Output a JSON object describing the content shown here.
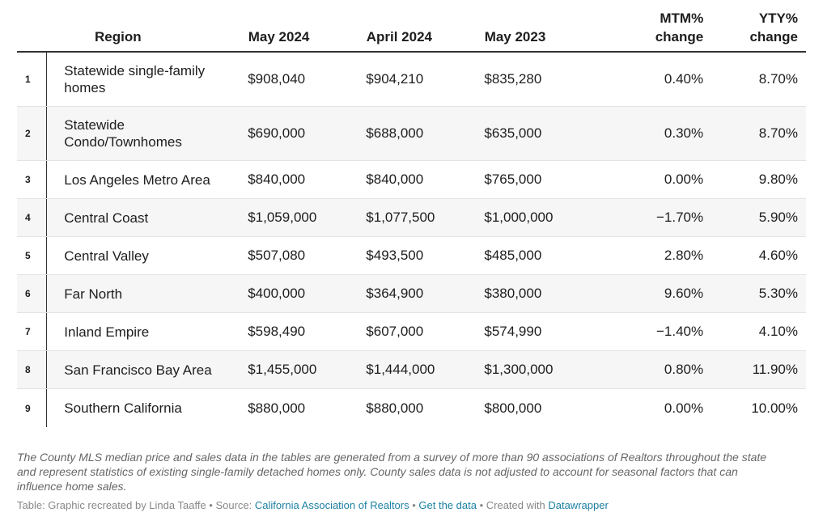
{
  "table": {
    "headers": {
      "rank": "",
      "region": "Region",
      "may_2024": "May 2024",
      "april_2024": "April 2024",
      "may_2023": "May 2023",
      "mtm_line1": "MTM%",
      "mtm_line2": "change",
      "yty_line1": "YTY%",
      "yty_line2": "change"
    },
    "rows": [
      {
        "rank": "1",
        "region_line1": "Statewide single-family",
        "region_line2": "homes",
        "may_2024": "$908,040",
        "april_2024": "$904,210",
        "may_2023": "$835,280",
        "mtm": "0.40%",
        "yty": "8.70%"
      },
      {
        "rank": "2",
        "region_line1": "Statewide",
        "region_line2": "Condo/Townhomes",
        "may_2024": "$690,000",
        "april_2024": "$688,000",
        "may_2023": "$635,000",
        "mtm": "0.30%",
        "yty": "8.70%"
      },
      {
        "rank": "3",
        "region": "Los Angeles Metro Area",
        "may_2024": "$840,000",
        "april_2024": "$840,000",
        "may_2023": "$765,000",
        "mtm": "0.00%",
        "yty": "9.80%"
      },
      {
        "rank": "4",
        "region": "Central Coast",
        "may_2024": "$1,059,000",
        "april_2024": "$1,077,500",
        "may_2023": "$1,000,000",
        "mtm": "−1.70%",
        "yty": "5.90%"
      },
      {
        "rank": "5",
        "region": "Central Valley",
        "may_2024": "$507,080",
        "april_2024": "$493,500",
        "may_2023": "$485,000",
        "mtm": "2.80%",
        "yty": "4.60%"
      },
      {
        "rank": "6",
        "region": "Far North",
        "may_2024": "$400,000",
        "april_2024": "$364,900",
        "may_2023": "$380,000",
        "mtm": "9.60%",
        "yty": "5.30%"
      },
      {
        "rank": "7",
        "region": "Inland Empire",
        "may_2024": "$598,490",
        "april_2024": "$607,000",
        "may_2023": "$574,990",
        "mtm": "−1.40%",
        "yty": "4.10%"
      },
      {
        "rank": "8",
        "region": "San Francisco Bay Area",
        "may_2024": "$1,455,000",
        "april_2024": "$1,444,000",
        "may_2023": "$1,300,000",
        "mtm": "0.80%",
        "yty": "11.90%"
      },
      {
        "rank": "9",
        "region": "Southern California",
        "may_2024": "$880,000",
        "april_2024": "$880,000",
        "may_2023": "$800,000",
        "mtm": "0.00%",
        "yty": "10.00%"
      }
    ]
  },
  "footnote": {
    "line1": "The County MLS median price and sales data in the tables are generated from a survey of more than 90 associations of Realtors throughout the state",
    "line2": "and represent statistics of existing single-family detached homes only. County sales data is not adjusted to account for seasonal factors that can",
    "line3": "influence home sales."
  },
  "credits": {
    "prefix": "Table: Graphic recreated by Linda Taaffe • Source: ",
    "source_link": "California Association of Realtors",
    "sep1": " • ",
    "data_link": "Get the data",
    "sep2": " • Created with ",
    "tool_link": "Datawrapper"
  },
  "colors": {
    "text": "#1d1d1d",
    "row_alt_bg": "#f6f6f6",
    "link": "#1d81a2",
    "muted": "#888888"
  }
}
